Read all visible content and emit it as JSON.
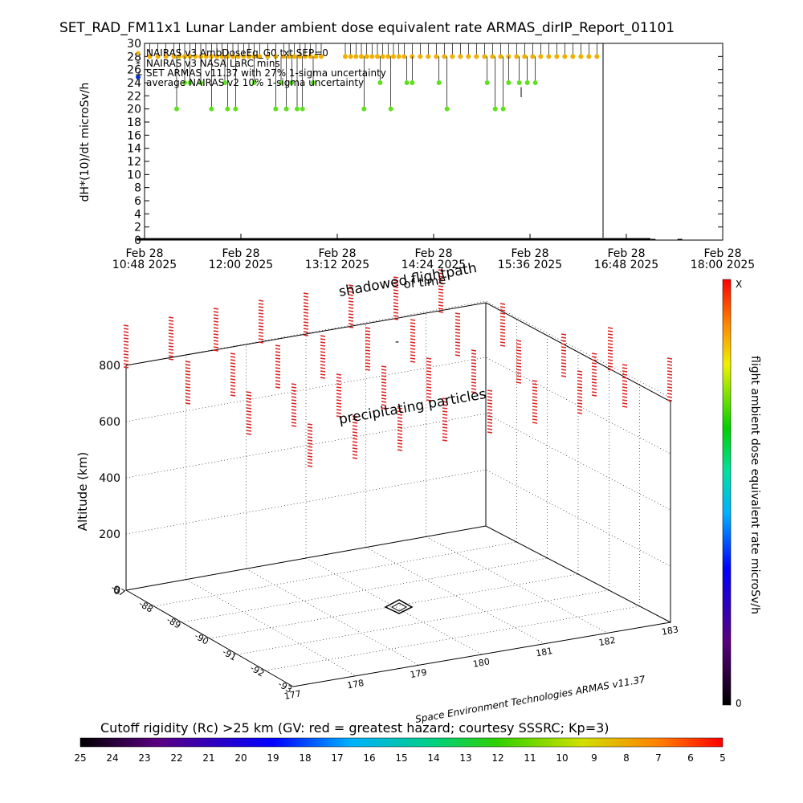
{
  "title": "SET_RAD_FM11x1  Lunar Lander ambient dose equivalent rate ARMAS_dirIP_Report_01101",
  "chart_data": [
    {
      "type": "scatter",
      "ylabel": "dH*(10)/dt microSv/h",
      "ylim": [
        0,
        30
      ],
      "y_ticks": [
        0,
        2,
        4,
        6,
        8,
        10,
        12,
        14,
        16,
        18,
        20,
        22,
        24,
        26,
        28,
        30
      ],
      "x_ticks": [
        {
          "date": "Feb 28",
          "time": "10:48 2025"
        },
        {
          "date": "Feb 28",
          "time": "12:00 2025"
        },
        {
          "date": "Feb 28",
          "time": "13:12 2025"
        },
        {
          "date": "Feb 28",
          "time": "14:24 2025"
        },
        {
          "date": "Feb 28",
          "time": "15:36 2025"
        },
        {
          "date": "Feb 28",
          "time": "16:48 2025"
        },
        {
          "date": "Feb 28",
          "time": "18:00 2025"
        }
      ],
      "xlim_minutes": [
        0,
        432
      ],
      "legend": [
        {
          "label": "NAIRAS v3 AmbDoseEq_G0.txt SEP=0",
          "color": "#f0b000",
          "marker": "dot"
        },
        {
          "label": "NAIRAS v3 NASA LaRC mins",
          "color": "#808080",
          "marker": "asterisk"
        },
        {
          "label": "SET ARMAS v11.37 with 27% 1-sigma uncertainty",
          "color": "#000000",
          "marker": "plus"
        },
        {
          "label": "average NAIRAS v2 10% 1-sigma uncertainty",
          "color": "#1030d0",
          "marker": "dot"
        }
      ],
      "series": [
        {
          "name": "NAIRAS v3 AmbDoseEq_G0.txt SEP=0",
          "color": "#f0b000",
          "x_minutes": [
            4,
            10,
            16,
            22,
            26,
            30,
            34,
            38,
            42,
            46,
            50,
            54,
            58,
            62,
            66,
            70,
            74,
            78,
            82,
            86,
            92,
            98,
            104,
            108,
            112,
            116,
            120,
            124,
            128,
            132,
            150,
            154,
            158,
            162,
            166,
            170,
            174,
            178,
            182,
            186,
            190,
            194,
            200,
            206,
            212,
            218,
            224,
            230,
            236,
            242,
            248,
            254,
            260,
            266,
            272,
            278,
            284,
            290,
            296,
            302,
            308,
            314,
            320,
            326,
            332,
            338
          ],
          "y": [
            28,
            28,
            28,
            28,
            28,
            28,
            28,
            28,
            28,
            28,
            28,
            28,
            28,
            28,
            28,
            28,
            28,
            28,
            28,
            28,
            28,
            28,
            28,
            28,
            28,
            28,
            28,
            28,
            28,
            28,
            28,
            28,
            28,
            28,
            28,
            28,
            28,
            28,
            28,
            28,
            28,
            28,
            28,
            28,
            28,
            28,
            28,
            28,
            28,
            28,
            28,
            28,
            28,
            28,
            28,
            28,
            28,
            28,
            28,
            28,
            28,
            28,
            28,
            28,
            28,
            28
          ]
        },
        {
          "name": "green",
          "color": "#60e020",
          "x_minutes": [
            24,
            30,
            34,
            42,
            50,
            60,
            62,
            68,
            82,
            98,
            102,
            106,
            110,
            114,
            118,
            126,
            164,
            176,
            184,
            196,
            200,
            220,
            226,
            256,
            262,
            268,
            272,
            280,
            286,
            292
          ],
          "y": [
            20,
            24,
            24,
            24,
            20,
            24,
            20,
            20,
            24,
            20,
            24,
            20,
            24,
            20,
            20,
            24,
            20,
            24,
            20,
            24,
            24,
            24,
            20,
            24,
            20,
            20,
            24,
            24,
            24,
            24
          ]
        },
        {
          "name": "ARMAS",
          "color": "#000000",
          "x_minutes": [
            0,
            20,
            40,
            60,
            80,
            100,
            120,
            140,
            160,
            180,
            200,
            220,
            240,
            260,
            280,
            300,
            320,
            340,
            360,
            380,
            400
          ],
          "y": [
            0,
            0,
            0,
            0,
            0,
            0,
            0,
            0,
            0,
            0,
            0,
            0,
            0,
            0,
            0,
            0,
            0,
            0,
            0,
            0,
            0
          ]
        }
      ],
      "annotation": "|"
    },
    {
      "type": "scatter",
      "view": "3d",
      "zlabel": "Altitude (km)",
      "z_ticks": [
        0,
        200,
        400,
        600,
        800
      ],
      "x_ticks": [
        177,
        178,
        179,
        180,
        181,
        182,
        183
      ],
      "y_ticks": [
        -87,
        -88,
        -89,
        -90,
        -91,
        -92,
        -93
      ],
      "annotations": [
        "shadowed flightpath",
        "of time",
        "precipitating particles"
      ],
      "footnote": "Space Environment Technologies ARMAS v11.37",
      "colorbar_label": "flight ambient dose equivalent rate microSv/h",
      "colorbar_top": "X",
      "colorbar_bottom": "0"
    }
  ],
  "cutoff_rigidity": {
    "caption": "Cutoff rigidity (Rc) >25 km (GV: red = greatest hazard; courtesy SSSRC; Kp=3)",
    "labels": [
      "25",
      "24",
      "23",
      "22",
      "21",
      "20",
      "19",
      "18",
      "17",
      "16",
      "15",
      "14",
      "13",
      "12",
      "11",
      "10",
      "9",
      "8",
      "7",
      "6",
      "5"
    ]
  }
}
